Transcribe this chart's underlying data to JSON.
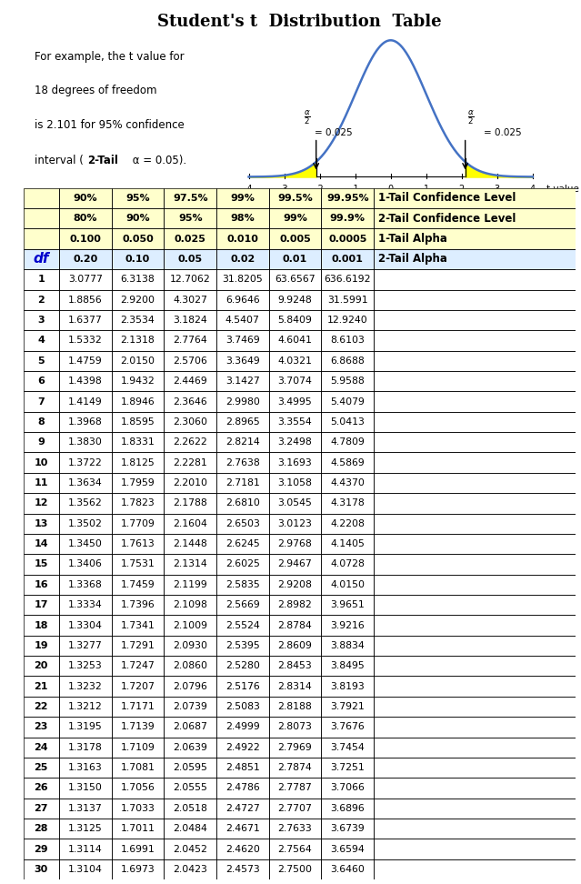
{
  "title": "Student's t  Distribution  Table",
  "example_lines": [
    "For example, the t value for",
    "18 degrees of freedom",
    "is 2.101 for 95% confidence",
    "interval (·2-Tail· α = 0.05)."
  ],
  "header1": [
    "90%",
    "95%",
    "97.5%",
    "99%",
    "99.5%",
    "99.95%",
    "1-Tail Confidence Level"
  ],
  "header2": [
    "80%",
    "90%",
    "95%",
    "98%",
    "99%",
    "99.9%",
    "2-Tail Confidence Level"
  ],
  "header3": [
    "0.100",
    "0.050",
    "0.025",
    "0.010",
    "0.005",
    "0.0005",
    "1-Tail Alpha"
  ],
  "header4": [
    "0.20",
    "0.10",
    "0.05",
    "0.02",
    "0.01",
    "0.001",
    "2-Tail Alpha"
  ],
  "df_values": [
    1,
    2,
    3,
    4,
    5,
    6,
    7,
    8,
    9,
    10,
    11,
    12,
    13,
    14,
    15,
    16,
    17,
    18,
    19,
    20,
    21,
    22,
    23,
    24,
    25,
    26,
    27,
    28,
    29,
    30
  ],
  "table_data": [
    [
      3.0777,
      6.3138,
      12.7062,
      31.8205,
      63.6567,
      636.6192
    ],
    [
      1.8856,
      2.92,
      4.3027,
      6.9646,
      9.9248,
      31.5991
    ],
    [
      1.6377,
      2.3534,
      3.1824,
      4.5407,
      5.8409,
      12.924
    ],
    [
      1.5332,
      2.1318,
      2.7764,
      3.7469,
      4.6041,
      8.6103
    ],
    [
      1.4759,
      2.015,
      2.5706,
      3.3649,
      4.0321,
      6.8688
    ],
    [
      1.4398,
      1.9432,
      2.4469,
      3.1427,
      3.7074,
      5.9588
    ],
    [
      1.4149,
      1.8946,
      2.3646,
      2.998,
      3.4995,
      5.4079
    ],
    [
      1.3968,
      1.8595,
      2.306,
      2.8965,
      3.3554,
      5.0413
    ],
    [
      1.383,
      1.8331,
      2.2622,
      2.8214,
      3.2498,
      4.7809
    ],
    [
      1.3722,
      1.8125,
      2.2281,
      2.7638,
      3.1693,
      4.5869
    ],
    [
      1.3634,
      1.7959,
      2.201,
      2.7181,
      3.1058,
      4.437
    ],
    [
      1.3562,
      1.7823,
      2.1788,
      2.681,
      3.0545,
      4.3178
    ],
    [
      1.3502,
      1.7709,
      2.1604,
      2.6503,
      3.0123,
      4.2208
    ],
    [
      1.345,
      1.7613,
      2.1448,
      2.6245,
      2.9768,
      4.1405
    ],
    [
      1.3406,
      1.7531,
      2.1314,
      2.6025,
      2.9467,
      4.0728
    ],
    [
      1.3368,
      1.7459,
      2.1199,
      2.5835,
      2.9208,
      4.015
    ],
    [
      1.3334,
      1.7396,
      2.1098,
      2.5669,
      2.8982,
      3.9651
    ],
    [
      1.3304,
      1.7341,
      2.1009,
      2.5524,
      2.8784,
      3.9216
    ],
    [
      1.3277,
      1.7291,
      2.093,
      2.5395,
      2.8609,
      3.8834
    ],
    [
      1.3253,
      1.7247,
      2.086,
      2.528,
      2.8453,
      3.8495
    ],
    [
      1.3232,
      1.7207,
      2.0796,
      2.5176,
      2.8314,
      3.8193
    ],
    [
      1.3212,
      1.7171,
      2.0739,
      2.5083,
      2.8188,
      3.7921
    ],
    [
      1.3195,
      1.7139,
      2.0687,
      2.4999,
      2.8073,
      3.7676
    ],
    [
      1.3178,
      1.7109,
      2.0639,
      2.4922,
      2.7969,
      3.7454
    ],
    [
      1.3163,
      1.7081,
      2.0595,
      2.4851,
      2.7874,
      3.7251
    ],
    [
      1.315,
      1.7056,
      2.0555,
      2.4786,
      2.7787,
      3.7066
    ],
    [
      1.3137,
      1.7033,
      2.0518,
      2.4727,
      2.7707,
      3.6896
    ],
    [
      1.3125,
      1.7011,
      2.0484,
      2.4671,
      2.7633,
      3.6739
    ],
    [
      1.3114,
      1.6991,
      2.0452,
      2.462,
      2.7564,
      3.6594
    ],
    [
      1.3104,
      1.6973,
      2.0423,
      2.4573,
      2.75,
      3.646
    ]
  ],
  "yellow_bg": "#FFFFCC",
  "blue_bg": "#DDEEFF",
  "curve_color": "#4472C4",
  "fill_color": "#FFFF00",
  "t_crit": 2.101
}
